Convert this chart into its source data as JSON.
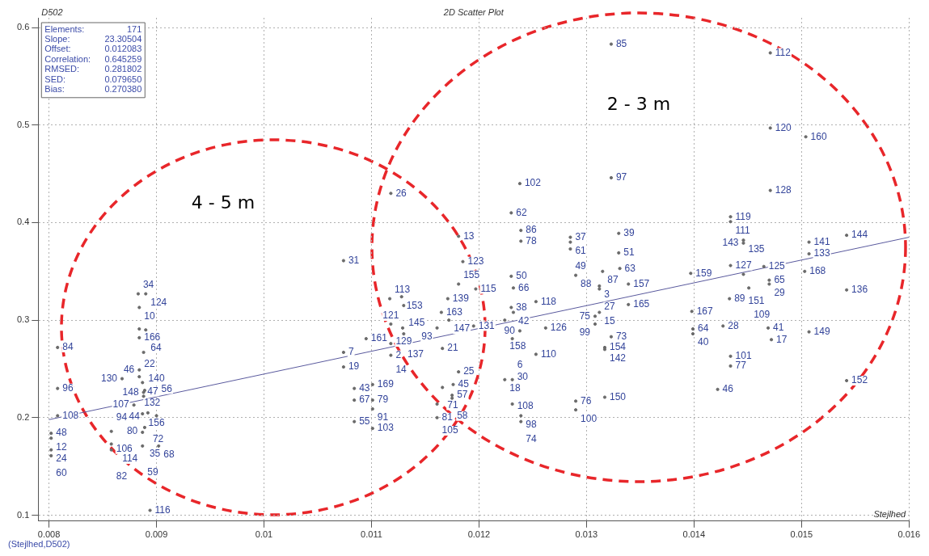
{
  "chart_data": {
    "type": "scatter",
    "title": "2D Scatter Plot",
    "xlabel": "Stejlhed",
    "ylabel": "D502",
    "xlim": [
      0.0079,
      0.016
    ],
    "ylim": [
      0.094,
      0.61
    ],
    "xticks": [
      0.008,
      0.009,
      0.01,
      0.011,
      0.012,
      0.013,
      0.014,
      0.015,
      0.016
    ],
    "yticks": [
      0.1,
      0.2,
      0.3,
      0.4,
      0.5,
      0.6
    ],
    "grid": true,
    "legend": false,
    "annotations": [
      "Elements: 171",
      "Slope: 23.30504",
      "Offset: 0.012083",
      "Correlation: 0.645259",
      "RMSED: 0.281802",
      "SED: 0.079650",
      "Bias: 0.270380",
      "(Stejlhed,D502)",
      "4 - 5 m",
      "2 - 3 m",
      {
        "text": "85",
        "x": 0.01323,
        "y": 0.583
      },
      {
        "text": "112",
        "x": 0.01471,
        "y": 0.574
      },
      {
        "text": "120",
        "x": 0.01471,
        "y": 0.497
      },
      {
        "text": "160",
        "x": 0.01504,
        "y": 0.488
      },
      {
        "text": "128",
        "x": 0.01471,
        "y": 0.433
      },
      {
        "text": "119",
        "x": 0.01434,
        "y": 0.406
      },
      {
        "text": "111",
        "x": 0.01434,
        "y": 0.401
      },
      {
        "text": "135",
        "x": 0.01446,
        "y": 0.382
      },
      {
        "text": "143",
        "x": 0.01446,
        "y": 0.379
      },
      {
        "text": "144",
        "x": 0.01542,
        "y": 0.387
      },
      {
        "text": "141",
        "x": 0.01507,
        "y": 0.38
      },
      {
        "text": "133",
        "x": 0.01507,
        "y": 0.368
      },
      {
        "text": "168",
        "x": 0.01503,
        "y": 0.35
      },
      {
        "text": "127",
        "x": 0.01434,
        "y": 0.356
      },
      {
        "text": "125",
        "x": 0.01465,
        "y": 0.355
      },
      {
        "text": "151",
        "x": 0.01446,
        "y": 0.347
      },
      {
        "text": "65",
        "x": 0.0147,
        "y": 0.341
      },
      {
        "text": "29",
        "x": 0.0147,
        "y": 0.337
      },
      {
        "text": "109",
        "x": 0.01451,
        "y": 0.333
      },
      {
        "text": "89",
        "x": 0.01433,
        "y": 0.322
      },
      {
        "text": "136",
        "x": 0.01542,
        "y": 0.331
      },
      {
        "text": "167",
        "x": 0.01398,
        "y": 0.309
      },
      {
        "text": "28",
        "x": 0.01427,
        "y": 0.294
      },
      {
        "text": "64",
        "x": 0.01399,
        "y": 0.291
      },
      {
        "text": "40",
        "x": 0.01399,
        "y": 0.286
      },
      {
        "text": "41",
        "x": 0.01469,
        "y": 0.292
      },
      {
        "text": "17",
        "x": 0.01472,
        "y": 0.28
      },
      {
        "text": "149",
        "x": 0.01507,
        "y": 0.288
      },
      {
        "text": "101",
        "x": 0.01434,
        "y": 0.263
      },
      {
        "text": "77",
        "x": 0.01434,
        "y": 0.253
      },
      {
        "text": "46",
        "x": 0.01422,
        "y": 0.229
      },
      {
        "text": "152",
        "x": 0.01542,
        "y": 0.238
      },
      {
        "text": "159",
        "x": 0.01397,
        "y": 0.348
      },
      {
        "text": "102",
        "x": 0.01238,
        "y": 0.44
      },
      {
        "text": "97",
        "x": 0.01323,
        "y": 0.446
      },
      {
        "text": "62",
        "x": 0.0123,
        "y": 0.41
      },
      {
        "text": "86",
        "x": 0.01239,
        "y": 0.392
      },
      {
        "text": "78",
        "x": 0.01239,
        "y": 0.381
      },
      {
        "text": "37",
        "x": 0.01285,
        "y": 0.385
      },
      {
        "text": "61",
        "x": 0.01285,
        "y": 0.38
      },
      {
        "text": "49",
        "x": 0.01285,
        "y": 0.373
      },
      {
        "text": "39",
        "x": 0.0133,
        "y": 0.389
      },
      {
        "text": "51",
        "x": 0.0133,
        "y": 0.369
      },
      {
        "text": "63",
        "x": 0.01331,
        "y": 0.353
      },
      {
        "text": "87",
        "x": 0.01315,
        "y": 0.35
      },
      {
        "text": "88",
        "x": 0.0129,
        "y": 0.346
      },
      {
        "text": "50",
        "x": 0.0123,
        "y": 0.345
      },
      {
        "text": "66",
        "x": 0.01232,
        "y": 0.333
      },
      {
        "text": "3",
        "x": 0.01312,
        "y": 0.335
      },
      {
        "text": "27",
        "x": 0.01312,
        "y": 0.332
      },
      {
        "text": "157",
        "x": 0.01339,
        "y": 0.337
      },
      {
        "text": "118",
        "x": 0.01253,
        "y": 0.319
      },
      {
        "text": "165",
        "x": 0.01339,
        "y": 0.316
      },
      {
        "text": "38",
        "x": 0.0123,
        "y": 0.313
      },
      {
        "text": "42",
        "x": 0.01232,
        "y": 0.308
      },
      {
        "text": "15",
        "x": 0.01312,
        "y": 0.308
      },
      {
        "text": "75",
        "x": 0.01308,
        "y": 0.304
      },
      {
        "text": "158",
        "x": 0.01224,
        "y": 0.3
      },
      {
        "text": "99",
        "x": 0.01308,
        "y": 0.296
      },
      {
        "text": "90",
        "x": 0.01238,
        "y": 0.289
      },
      {
        "text": "126",
        "x": 0.01262,
        "y": 0.292
      },
      {
        "text": "6",
        "x": 0.01231,
        "y": 0.281
      },
      {
        "text": "73",
        "x": 0.01323,
        "y": 0.283
      },
      {
        "text": "154",
        "x": 0.01317,
        "y": 0.272
      },
      {
        "text": "142",
        "x": 0.01317,
        "y": 0.27
      },
      {
        "text": "110",
        "x": 0.01253,
        "y": 0.265
      },
      {
        "text": "18",
        "x": 0.01224,
        "y": 0.239
      },
      {
        "text": "108",
        "x": 0.01231,
        "y": 0.239
      },
      {
        "text": "30",
        "x": 0.01231,
        "y": 0.214
      },
      {
        "text": "76",
        "x": 0.0129,
        "y": 0.217
      },
      {
        "text": "100",
        "x": 0.0129,
        "y": 0.208
      },
      {
        "text": "150",
        "x": 0.01317,
        "y": 0.221
      },
      {
        "text": "98",
        "x": 0.01239,
        "y": 0.202
      },
      {
        "text": "74",
        "x": 0.01239,
        "y": 0.196
      },
      {
        "text": "26",
        "x": 0.01118,
        "y": 0.43
      },
      {
        "text": "13",
        "x": 0.01181,
        "y": 0.386
      },
      {
        "text": "31",
        "x": 0.01074,
        "y": 0.361
      },
      {
        "text": "123",
        "x": 0.01185,
        "y": 0.36
      },
      {
        "text": "155",
        "x": 0.01181,
        "y": 0.337
      },
      {
        "text": "115",
        "x": 0.01197,
        "y": 0.332
      },
      {
        "text": "113",
        "x": 0.01117,
        "y": 0.322
      },
      {
        "text": "153",
        "x": 0.01128,
        "y": 0.324
      },
      {
        "text": "139",
        "x": 0.01171,
        "y": 0.322
      },
      {
        "text": "145",
        "x": 0.0113,
        "y": 0.315
      },
      {
        "text": "163",
        "x": 0.01165,
        "y": 0.308
      },
      {
        "text": "147",
        "x": 0.01172,
        "y": 0.3
      },
      {
        "text": "129",
        "x": 0.01118,
        "y": 0.296
      },
      {
        "text": "137",
        "x": 0.01129,
        "y": 0.292
      },
      {
        "text": "93",
        "x": 0.01161,
        "y": 0.292
      },
      {
        "text": "131",
        "x": 0.01195,
        "y": 0.294
      },
      {
        "text": "121",
        "x": 0.0113,
        "y": 0.286
      },
      {
        "text": "161",
        "x": 0.01095,
        "y": 0.281
      },
      {
        "text": "14",
        "x": 0.01118,
        "y": 0.276
      },
      {
        "text": "7",
        "x": 0.01074,
        "y": 0.267
      },
      {
        "text": "21",
        "x": 0.01166,
        "y": 0.271
      },
      {
        "text": "2",
        "x": 0.01118,
        "y": 0.264
      },
      {
        "text": "19",
        "x": 0.01074,
        "y": 0.252
      },
      {
        "text": "25",
        "x": 0.01181,
        "y": 0.247
      },
      {
        "text": "169",
        "x": 0.01101,
        "y": 0.234
      },
      {
        "text": "43",
        "x": 0.01084,
        "y": 0.23
      },
      {
        "text": "45",
        "x": 0.01176,
        "y": 0.234
      },
      {
        "text": "71",
        "x": 0.01166,
        "y": 0.231
      },
      {
        "text": "57",
        "x": 0.01175,
        "y": 0.223
      },
      {
        "text": "58",
        "x": 0.01175,
        "y": 0.22
      },
      {
        "text": "67",
        "x": 0.01084,
        "y": 0.218
      },
      {
        "text": "79",
        "x": 0.01101,
        "y": 0.218
      },
      {
        "text": "105",
        "x": 0.01161,
        "y": 0.214
      },
      {
        "text": "91",
        "x": 0.01101,
        "y": 0.209
      },
      {
        "text": "81",
        "x": 0.01161,
        "y": 0.2
      },
      {
        "text": "55",
        "x": 0.01084,
        "y": 0.196
      },
      {
        "text": "103",
        "x": 0.01101,
        "y": 0.189
      },
      {
        "text": "34",
        "x": 0.00883,
        "y": 0.327
      },
      {
        "text": "124",
        "x": 0.0089,
        "y": 0.327
      },
      {
        "text": "10",
        "x": 0.00884,
        "y": 0.313
      },
      {
        "text": "166",
        "x": 0.00884,
        "y": 0.291
      },
      {
        "text": "64",
        "x": 0.0089,
        "y": 0.29
      },
      {
        "text": "22",
        "x": 0.00884,
        "y": 0.282
      },
      {
        "text": "84",
        "x": 0.00808,
        "y": 0.272
      },
      {
        "text": "140",
        "x": 0.00888,
        "y": 0.267
      },
      {
        "text": "46",
        "x": 0.00884,
        "y": 0.249
      },
      {
        "text": "130",
        "x": 0.00868,
        "y": 0.24
      },
      {
        "text": "132",
        "x": 0.00884,
        "y": 0.242
      },
      {
        "text": "47",
        "x": 0.00887,
        "y": 0.236
      },
      {
        "text": "96",
        "x": 0.00808,
        "y": 0.23
      },
      {
        "text": "148",
        "x": 0.00888,
        "y": 0.226
      },
      {
        "text": "44",
        "x": 0.00889,
        "y": 0.228
      },
      {
        "text": "156",
        "x": 0.00888,
        "y": 0.222
      },
      {
        "text": "107",
        "x": 0.00879,
        "y": 0.213
      },
      {
        "text": "108",
        "x": 0.00808,
        "y": 0.202
      },
      {
        "text": "80",
        "x": 0.00887,
        "y": 0.204
      },
      {
        "text": "72",
        "x": 0.00892,
        "y": 0.205
      },
      {
        "text": "56",
        "x": 0.009,
        "y": 0.202
      },
      {
        "text": "106",
        "x": 0.00858,
        "y": 0.186
      },
      {
        "text": "35",
        "x": 0.00889,
        "y": 0.19
      },
      {
        "text": "114",
        "x": 0.00887,
        "y": 0.185
      },
      {
        "text": "48",
        "x": 0.00802,
        "y": 0.184
      },
      {
        "text": "12",
        "x": 0.00802,
        "y": 0.179
      },
      {
        "text": "94",
        "x": 0.00858,
        "y": 0.173
      },
      {
        "text": "82",
        "x": 0.00858,
        "y": 0.167
      },
      {
        "text": "59",
        "x": 0.00887,
        "y": 0.171
      },
      {
        "text": "68",
        "x": 0.00902,
        "y": 0.171
      },
      {
        "text": "24",
        "x": 0.00802,
        "y": 0.167
      },
      {
        "text": "60",
        "x": 0.00802,
        "y": 0.161
      },
      {
        "text": "116",
        "x": 0.00894,
        "y": 0.105
      }
    ],
    "series": [
      {
        "type": "scatter",
        "color": "#6a6a6a",
        "marker": "circle",
        "x": [
          0.01323,
          0.01471,
          0.01471,
          0.01504,
          0.01471,
          0.01434,
          0.01434,
          0.01446,
          0.01446,
          0.01542,
          0.01507,
          0.01507,
          0.01503,
          0.01434,
          0.01465,
          0.01446,
          0.0147,
          0.0147,
          0.01451,
          0.01433,
          0.01542,
          0.01398,
          0.01427,
          0.01399,
          0.01399,
          0.01469,
          0.01472,
          0.01507,
          0.01434,
          0.01434,
          0.01422,
          0.01542,
          0.01397,
          0.01238,
          0.01323,
          0.0123,
          0.01239,
          0.01239,
          0.01285,
          0.01285,
          0.01285,
          0.0133,
          0.0133,
          0.01331,
          0.01315,
          0.0129,
          0.0123,
          0.01232,
          0.01312,
          0.01312,
          0.01339,
          0.01253,
          0.01339,
          0.0123,
          0.01232,
          0.01312,
          0.01308,
          0.01224,
          0.01308,
          0.01238,
          0.01262,
          0.01231,
          0.01323,
          0.01317,
          0.01317,
          0.01253,
          0.01224,
          0.01231,
          0.01231,
          0.0129,
          0.0129,
          0.01317,
          0.01239,
          0.01239,
          0.01118,
          0.01181,
          0.01074,
          0.01185,
          0.01181,
          0.01197,
          0.01117,
          0.01128,
          0.01171,
          0.0113,
          0.01165,
          0.01172,
          0.01118,
          0.01129,
          0.01161,
          0.01195,
          0.0113,
          0.01095,
          0.01118,
          0.01074,
          0.01166,
          0.01118,
          0.01074,
          0.01181,
          0.01101,
          0.01084,
          0.01176,
          0.01166,
          0.01175,
          0.01175,
          0.01084,
          0.01101,
          0.01161,
          0.01101,
          0.01161,
          0.01084,
          0.01101,
          0.00883,
          0.0089,
          0.00884,
          0.00884,
          0.0089,
          0.00884,
          0.00808,
          0.00888,
          0.00884,
          0.00868,
          0.00884,
          0.00887,
          0.00808,
          0.00888,
          0.00889,
          0.00888,
          0.00879,
          0.00808,
          0.00887,
          0.00892,
          0.009,
          0.00858,
          0.00889,
          0.00887,
          0.00802,
          0.00802,
          0.00858,
          0.00858,
          0.00887,
          0.00902,
          0.00802,
          0.00802,
          0.00894
        ],
        "values": [
          0.583,
          0.574,
          0.497,
          0.488,
          0.433,
          0.406,
          0.401,
          0.382,
          0.379,
          0.387,
          0.38,
          0.368,
          0.35,
          0.356,
          0.355,
          0.347,
          0.341,
          0.337,
          0.333,
          0.322,
          0.331,
          0.309,
          0.294,
          0.291,
          0.286,
          0.292,
          0.28,
          0.288,
          0.263,
          0.253,
          0.229,
          0.238,
          0.348,
          0.44,
          0.446,
          0.41,
          0.392,
          0.381,
          0.385,
          0.38,
          0.373,
          0.389,
          0.369,
          0.353,
          0.35,
          0.346,
          0.345,
          0.333,
          0.335,
          0.332,
          0.337,
          0.319,
          0.316,
          0.313,
          0.308,
          0.308,
          0.304,
          0.3,
          0.296,
          0.289,
          0.292,
          0.281,
          0.283,
          0.272,
          0.27,
          0.265,
          0.239,
          0.239,
          0.214,
          0.217,
          0.208,
          0.221,
          0.202,
          0.196,
          0.43,
          0.386,
          0.361,
          0.36,
          0.337,
          0.332,
          0.322,
          0.324,
          0.322,
          0.315,
          0.308,
          0.3,
          0.296,
          0.292,
          0.292,
          0.294,
          0.286,
          0.281,
          0.276,
          0.267,
          0.271,
          0.264,
          0.252,
          0.247,
          0.234,
          0.23,
          0.234,
          0.231,
          0.223,
          0.22,
          0.218,
          0.218,
          0.214,
          0.209,
          0.2,
          0.196,
          0.189,
          0.327,
          0.327,
          0.313,
          0.291,
          0.29,
          0.282,
          0.272,
          0.267,
          0.249,
          0.24,
          0.242,
          0.236,
          0.23,
          0.226,
          0.228,
          0.222,
          0.213,
          0.202,
          0.204,
          0.205,
          0.202,
          0.186,
          0.19,
          0.185,
          0.184,
          0.179,
          0.173,
          0.167,
          0.171,
          0.171,
          0.167,
          0.161,
          0.105
        ]
      },
      {
        "type": "line",
        "color": "#5a5a9e",
        "marker": "none",
        "line_style": "solid",
        "x": [
          0.008,
          0.016
        ],
        "values": [
          0.198,
          0.385
        ]
      }
    ]
  }
}
